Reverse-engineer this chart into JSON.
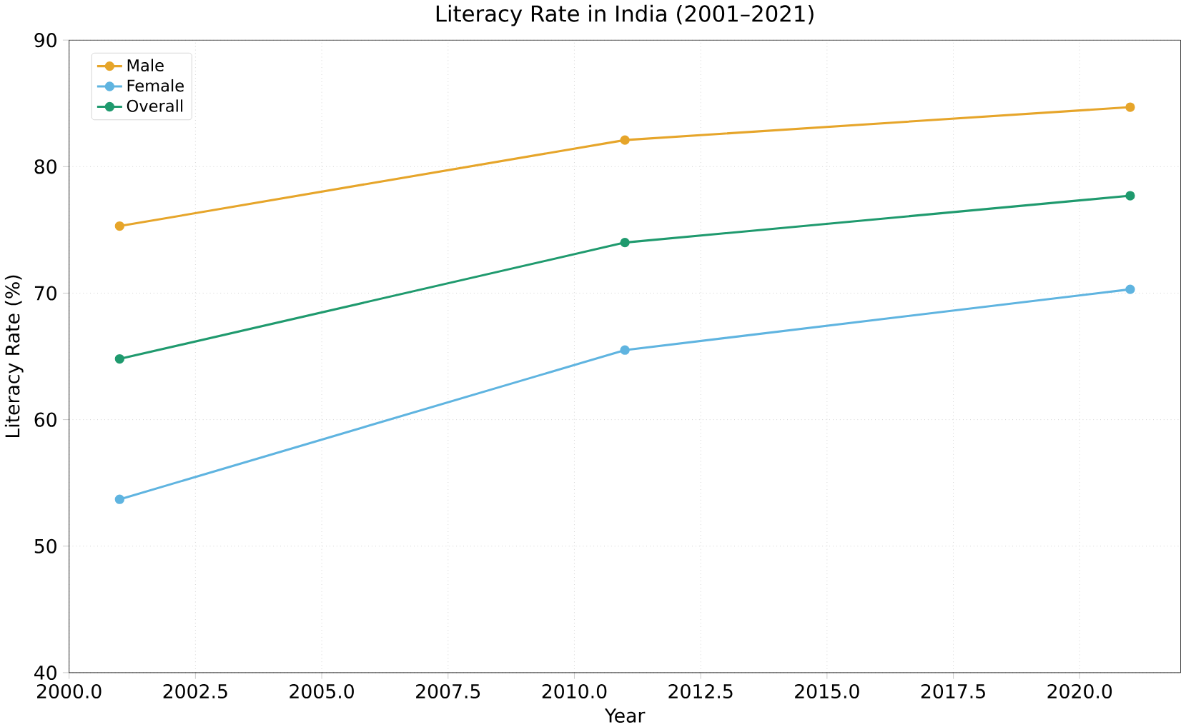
{
  "chart_data": {
    "type": "line",
    "title": "Literacy Rate in India (2001–2021)",
    "xlabel": "Year",
    "ylabel": "Literacy Rate (%)",
    "x": [
      2001,
      2011,
      2021
    ],
    "series": [
      {
        "name": "Male",
        "color": "#e6a52a",
        "values": [
          75.3,
          82.1,
          84.7
        ]
      },
      {
        "name": "Female",
        "color": "#5fb4e0",
        "values": [
          53.7,
          65.5,
          70.3
        ]
      },
      {
        "name": "Overall",
        "color": "#1f9a6e",
        "values": [
          64.8,
          74.0,
          77.7
        ]
      }
    ],
    "xlim": [
      2000,
      2022
    ],
    "ylim": [
      40,
      90
    ],
    "xticks": [
      {
        "value": 2000,
        "label": "2000.0"
      },
      {
        "value": 2002.5,
        "label": "2002.5"
      },
      {
        "value": 2005,
        "label": "2005.0"
      },
      {
        "value": 2007.5,
        "label": "2007.5"
      },
      {
        "value": 2010,
        "label": "2010.0"
      },
      {
        "value": 2012.5,
        "label": "2012.5"
      },
      {
        "value": 2015,
        "label": "2015.0"
      },
      {
        "value": 2017.5,
        "label": "2017.5"
      },
      {
        "value": 2020,
        "label": "2020.0"
      }
    ],
    "yticks": [
      40,
      50,
      60,
      70,
      80,
      90
    ],
    "grid": true,
    "legend": "top left",
    "marker": "circle",
    "line_style": "solid"
  }
}
